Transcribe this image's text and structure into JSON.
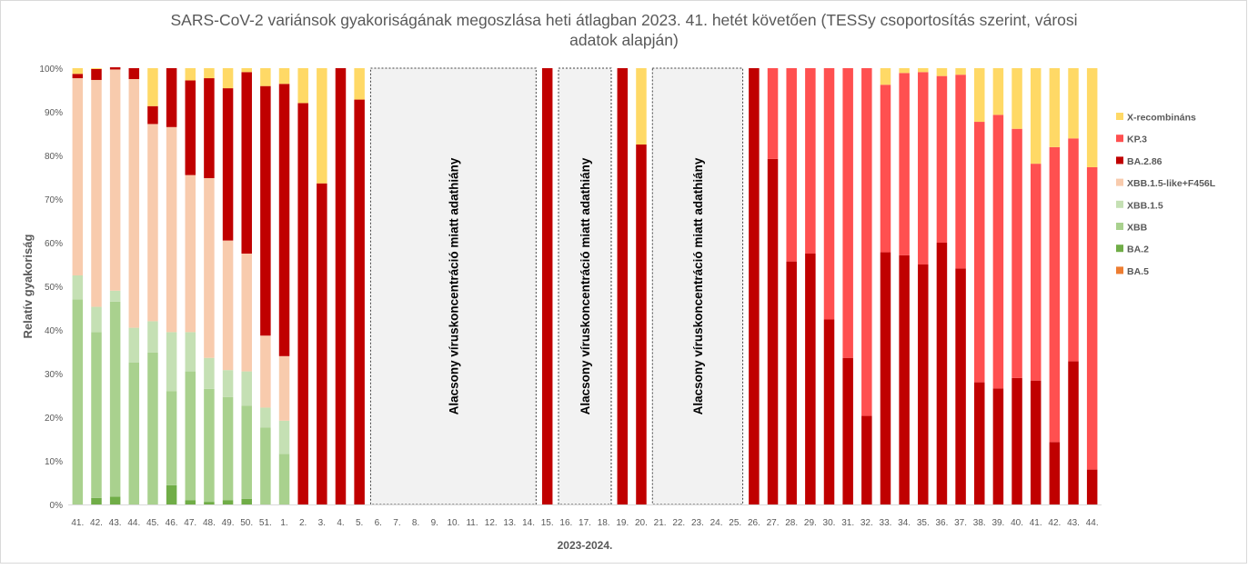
{
  "chart_data": {
    "type": "bar",
    "stacked": true,
    "title": "SARS-CoV-2 variánsok gyakoriságának megoszlása heti átlagban 2023. 41. hetét követően (TESSy csoportosítás szerint, városi adatok alapján)",
    "title_lines": [
      "SARS-CoV-2 variánsok gyakoriságának megoszlása heti átlagban 2023. 41. hetét követően (TESSy csoportosítás szerint, városi",
      "adatok alapján)"
    ],
    "xlabel": "2023-2024.",
    "ylabel": "Relatív gyakoriság",
    "ylim": [
      0,
      100
    ],
    "y_ticks": [
      "0%",
      "10%",
      "20%",
      "30%",
      "40%",
      "50%",
      "60%",
      "70%",
      "80%",
      "90%",
      "100%"
    ],
    "legend_position": "right",
    "categories": [
      "41.",
      "42.",
      "43.",
      "44.",
      "45.",
      "46.",
      "47.",
      "48.",
      "49.",
      "50.",
      "51.",
      "1.",
      "2.",
      "3.",
      "4.",
      "5.",
      "6.",
      "7.",
      "8.",
      "9.",
      "10.",
      "11.",
      "12.",
      "13.",
      "14.",
      "15.",
      "16.",
      "17.",
      "18.",
      "19.",
      "20.",
      "21.",
      "22.",
      "23.",
      "24.",
      "25.",
      "26.",
      "27.",
      "28.",
      "29.",
      "30.",
      "31.",
      "32.",
      "33.",
      "34.",
      "35.",
      "36.",
      "37.",
      "38.",
      "39.",
      "40.",
      "41.",
      "42.",
      "43.",
      "44."
    ],
    "series": [
      {
        "name": "BA.5",
        "color": "#ED7D31",
        "values": [
          0,
          0,
          0,
          0,
          0,
          0,
          0,
          0,
          0,
          0,
          0,
          0,
          0,
          0,
          0,
          0,
          null,
          null,
          null,
          null,
          null,
          null,
          null,
          null,
          null,
          0,
          null,
          null,
          null,
          0,
          0,
          null,
          null,
          null,
          null,
          null,
          0,
          0,
          0,
          0,
          0,
          0,
          0,
          0,
          0,
          0,
          0,
          0,
          0,
          0,
          0,
          0,
          0,
          0,
          0
        ]
      },
      {
        "name": "BA.2",
        "color": "#70AD47",
        "values": [
          0,
          1.5,
          1.8,
          0,
          0,
          4.4,
          1,
          0.6,
          1,
          1.3,
          0,
          0,
          0,
          0,
          0,
          0,
          null,
          null,
          null,
          null,
          null,
          null,
          null,
          null,
          null,
          0,
          null,
          null,
          null,
          0,
          0,
          null,
          null,
          null,
          null,
          null,
          0,
          0,
          0,
          0,
          0,
          0,
          0,
          0,
          0,
          0,
          0,
          0,
          0,
          0,
          0,
          0,
          0,
          0,
          0
        ]
      },
      {
        "name": "XBB",
        "color": "#A9D18E",
        "values": [
          47,
          38,
          44.7,
          32.5,
          34.8,
          21.6,
          29.5,
          25.9,
          23.6,
          21.3,
          17.6,
          11.6,
          0,
          0,
          0,
          0,
          null,
          null,
          null,
          null,
          null,
          null,
          null,
          null,
          null,
          0,
          null,
          null,
          null,
          0,
          0,
          null,
          null,
          null,
          null,
          null,
          0,
          0,
          0,
          0,
          0,
          0,
          0,
          0,
          0,
          0,
          0,
          0,
          0,
          0,
          0,
          0,
          0,
          0,
          0
        ]
      },
      {
        "name": "XBB.1.5",
        "color": "#C5E0B4",
        "values": [
          5.5,
          5.8,
          2.5,
          8,
          7.2,
          13.5,
          9,
          7.1,
          6.2,
          7.9,
          4.6,
          7.6,
          0,
          0,
          0,
          0,
          null,
          null,
          null,
          null,
          null,
          null,
          null,
          null,
          null,
          0,
          null,
          null,
          null,
          0,
          0,
          null,
          null,
          null,
          null,
          null,
          0,
          0,
          0,
          0,
          0,
          0,
          0,
          0,
          0,
          0,
          0,
          0,
          0,
          0,
          0,
          0,
          0,
          0,
          0
        ]
      },
      {
        "name": "XBB.1.5-like+F456L",
        "color": "#F8CBAD",
        "values": [
          45.2,
          52,
          50.7,
          57,
          45.2,
          47,
          36,
          41.2,
          29.7,
          27,
          16.5,
          14.8,
          0,
          0,
          0,
          0,
          null,
          null,
          null,
          null,
          null,
          null,
          null,
          null,
          null,
          0,
          null,
          null,
          null,
          0,
          0,
          null,
          null,
          null,
          null,
          null,
          0,
          0,
          0,
          0,
          0,
          0,
          0,
          0,
          0,
          0,
          0,
          0,
          0,
          0,
          0,
          0,
          0,
          0,
          0
        ]
      },
      {
        "name": "BA.2.86",
        "color": "#C00000",
        "values": [
          1,
          2.5,
          0.5,
          2.5,
          4.1,
          13.5,
          21.7,
          22.9,
          34.9,
          41.6,
          57.2,
          62.4,
          92,
          73.6,
          100,
          92.8,
          null,
          null,
          null,
          null,
          null,
          null,
          null,
          null,
          null,
          100,
          null,
          null,
          null,
          100,
          82.5,
          null,
          null,
          null,
          null,
          null,
          100,
          79.2,
          55.7,
          57.5,
          42.4,
          33.6,
          20.3,
          57.8,
          57.1,
          55,
          60,
          54.1,
          28,
          26.6,
          29,
          28.4,
          14.3,
          32.8,
          8
        ]
      },
      {
        "name": "KP.3",
        "color": "#FF5050",
        "values": [
          0,
          0,
          0,
          0,
          0,
          0,
          0,
          0,
          0,
          0,
          0,
          0,
          0,
          0,
          0,
          0,
          null,
          null,
          null,
          null,
          null,
          null,
          null,
          null,
          null,
          0,
          null,
          null,
          null,
          0,
          0,
          null,
          null,
          null,
          null,
          null,
          0,
          20.8,
          44.3,
          42.5,
          57.6,
          66.4,
          79.7,
          38.4,
          41.8,
          44.1,
          38.2,
          44.4,
          59.7,
          62.7,
          57.1,
          49.7,
          67.6,
          51.1,
          69.3
        ]
      },
      {
        "name": "X-recombináns",
        "color": "#FFD966",
        "values": [
          1.3,
          0.2,
          0,
          0,
          8.7,
          0,
          2.8,
          2.3,
          4.6,
          0.9,
          4.1,
          3.6,
          8,
          26.4,
          0,
          7.2,
          null,
          null,
          null,
          null,
          null,
          null,
          null,
          null,
          null,
          0,
          null,
          null,
          null,
          0,
          17.5,
          null,
          null,
          null,
          null,
          null,
          0,
          0,
          0,
          0,
          0,
          0,
          0,
          3.8,
          1.1,
          0.9,
          1.8,
          1.5,
          12.3,
          10.7,
          13.9,
          21.9,
          18.1,
          16.1,
          22.7
        ]
      }
    ],
    "annotations": [
      {
        "text": "Alacsony víruskoncentráció miatt adathiány",
        "from": "6.",
        "to": "14."
      },
      {
        "text": "Alacsony víruskoncentráció miatt adathiány",
        "from": "16.",
        "to": "18."
      },
      {
        "text": "Alacsony víruskoncentráció miatt adathiány",
        "from": "21.",
        "to": "25."
      }
    ],
    "grid": false
  }
}
